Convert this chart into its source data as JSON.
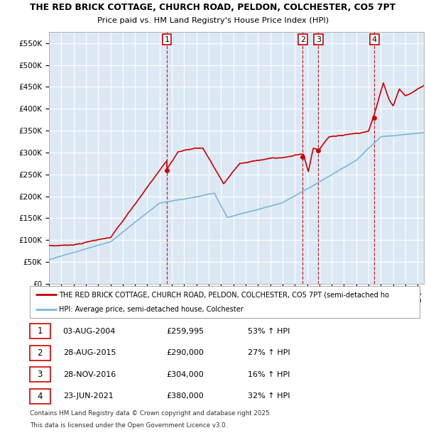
{
  "title1": "THE RED BRICK COTTAGE, CHURCH ROAD, PELDON, COLCHESTER, CO5 7PT",
  "title2": "Price paid vs. HM Land Registry's House Price Index (HPI)",
  "hpi_legend": "HPI: Average price, semi-detached house, Colchester",
  "prop_legend": "THE RED BRICK COTTAGE, CHURCH ROAD, PELDON, COLCHESTER, CO5 7PT (semi-detached ho",
  "background_color": "#dce9f5",
  "grid_color": "#ffffff",
  "red_line_color": "#cc0000",
  "blue_line_color": "#7ab8d9",
  "marker_color": "#cc0000",
  "vline_color": "#cc0000",
  "ylim": [
    0,
    575000
  ],
  "yticks": [
    0,
    50000,
    100000,
    150000,
    200000,
    250000,
    300000,
    350000,
    400000,
    450000,
    500000,
    550000
  ],
  "ytick_labels": [
    "£0",
    "£50K",
    "£100K",
    "£150K",
    "£200K",
    "£250K",
    "£300K",
    "£350K",
    "£400K",
    "£450K",
    "£500K",
    "£550K"
  ],
  "xmin": 1995,
  "xmax": 2025.5,
  "sales": [
    {
      "num": 1,
      "date": "03-AUG-2004",
      "price": 259995,
      "pct": "53%",
      "dir": "↑",
      "x_year": 2004.58
    },
    {
      "num": 2,
      "date": "28-AUG-2015",
      "price": 290000,
      "pct": "27%",
      "dir": "↑",
      "x_year": 2015.65
    },
    {
      "num": 3,
      "date": "28-NOV-2016",
      "price": 304000,
      "pct": "16%",
      "dir": "↑",
      "x_year": 2016.91
    },
    {
      "num": 4,
      "date": "23-JUN-2021",
      "price": 380000,
      "pct": "32%",
      "dir": "↑",
      "x_year": 2021.47
    }
  ],
  "footer1": "Contains HM Land Registry data © Crown copyright and database right 2025.",
  "footer2": "This data is licensed under the Open Government Licence v3.0.",
  "table_rows": [
    [
      "1",
      "03-AUG-2004",
      "£259,995",
      "53% ↑ HPI"
    ],
    [
      "2",
      "28-AUG-2015",
      "£290,000",
      "27% ↑ HPI"
    ],
    [
      "3",
      "28-NOV-2016",
      "£304,000",
      "16% ↑ HPI"
    ],
    [
      "4",
      "23-JUN-2021",
      "£380,000",
      "32% ↑ HPI"
    ]
  ]
}
